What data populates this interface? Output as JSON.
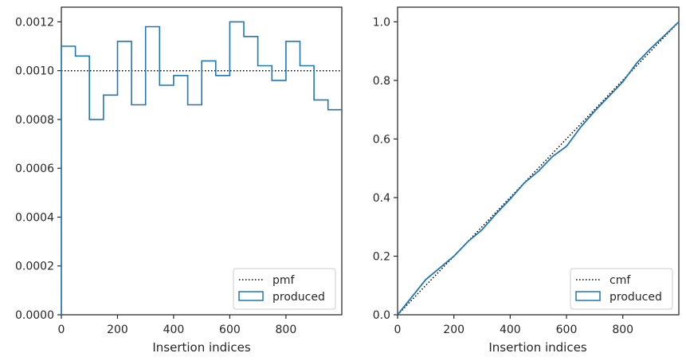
{
  "chart_data": [
    {
      "type": "line",
      "title": "",
      "xlabel": "Insertion indices",
      "ylabel": "",
      "xlim": [
        0,
        999
      ],
      "ylim": [
        0,
        0.00126
      ],
      "xticks": [
        0,
        200,
        400,
        600,
        800
      ],
      "yticks": [
        "0.0000",
        "0.0002",
        "0.0004",
        "0.0006",
        "0.0008",
        "0.0010",
        "0.0012"
      ],
      "grid": false,
      "legend_position": "lower right",
      "series": [
        {
          "name": "pmf",
          "style": "dotted",
          "color": "#000000",
          "x": [
            0,
            999
          ],
          "y": [
            0.001,
            0.001
          ]
        },
        {
          "name": "produced",
          "style": "step",
          "color": "#1f77b4",
          "bin_edges": [
            0,
            50,
            100,
            150,
            200,
            250,
            300,
            350,
            400,
            450,
            500,
            550,
            600,
            650,
            700,
            750,
            800,
            850,
            900,
            950,
            1000
          ],
          "values": [
            0.0011,
            0.00106,
            0.0008,
            0.0009,
            0.00112,
            0.00086,
            0.00118,
            0.00094,
            0.00098,
            0.00086,
            0.00104,
            0.00098,
            0.0012,
            0.00114,
            0.00102,
            0.00096,
            0.00112,
            0.00102,
            0.00088,
            0.00084
          ]
        }
      ]
    },
    {
      "type": "line",
      "title": "",
      "xlabel": "Insertion indices",
      "ylabel": "",
      "xlim": [
        0,
        999
      ],
      "ylim": [
        0,
        1.05
      ],
      "xticks": [
        0,
        200,
        400,
        600,
        800
      ],
      "yticks": [
        "0.0",
        "0.2",
        "0.4",
        "0.6",
        "0.8",
        "1.0"
      ],
      "grid": false,
      "legend_position": "lower right",
      "series": [
        {
          "name": "cmf",
          "style": "dotted",
          "color": "#000000",
          "x": [
            0,
            999
          ],
          "y": [
            0,
            1.0
          ]
        },
        {
          "name": "produced",
          "style": "line",
          "color": "#1f77b4",
          "x": [
            0,
            50,
            100,
            150,
            200,
            250,
            300,
            350,
            400,
            450,
            500,
            550,
            600,
            650,
            700,
            750,
            800,
            850,
            900,
            950,
            999
          ],
          "y": [
            0,
            0.06,
            0.12,
            0.16,
            0.2,
            0.25,
            0.29,
            0.345,
            0.395,
            0.45,
            0.49,
            0.54,
            0.575,
            0.64,
            0.695,
            0.745,
            0.795,
            0.86,
            0.91,
            0.955,
            1.0
          ]
        }
      ]
    }
  ]
}
